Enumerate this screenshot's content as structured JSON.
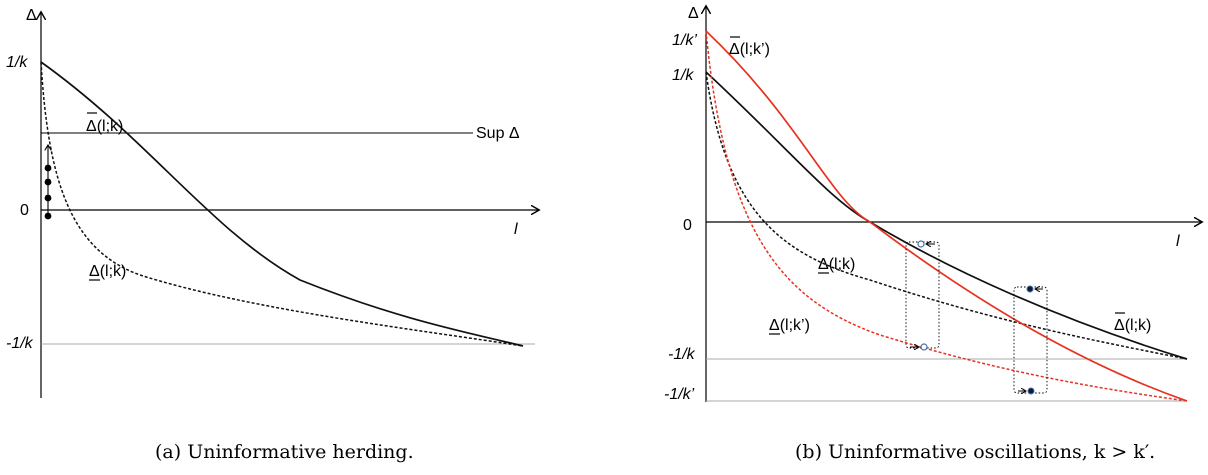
{
  "panel_a": {
    "y_axis_label": "Δ",
    "x_axis_label": "l",
    "tick_top": "1/k",
    "tick_zero": "0",
    "tick_bottom": "-1/k",
    "upper_curve_label": "Δ(l;k)",
    "lower_curve_label": "Δ(l;k)",
    "sup_label": "Sup Δ",
    "caption": "(a)  Uninformative herding."
  },
  "panel_b": {
    "y_axis_label": "Δ",
    "x_axis_label": "l",
    "tick_top_kprime": "1/k’",
    "tick_top_k": "1/k",
    "tick_zero": "0",
    "tick_bottom_k": "-1/k",
    "tick_bottom_kprime": "-1/k’",
    "upper_kprime_label": "Δ(l;k’)",
    "upper_k_label": "Δ(l;k)",
    "lower_k_label": "Δ(l;k)",
    "lower_kprime_label": "Δ(l;k’)",
    "caption": "(b)  Uninformative oscillations, k > k′."
  },
  "colors": {
    "k_curves": "#111111",
    "kprime_curves": "#e8311f"
  }
}
